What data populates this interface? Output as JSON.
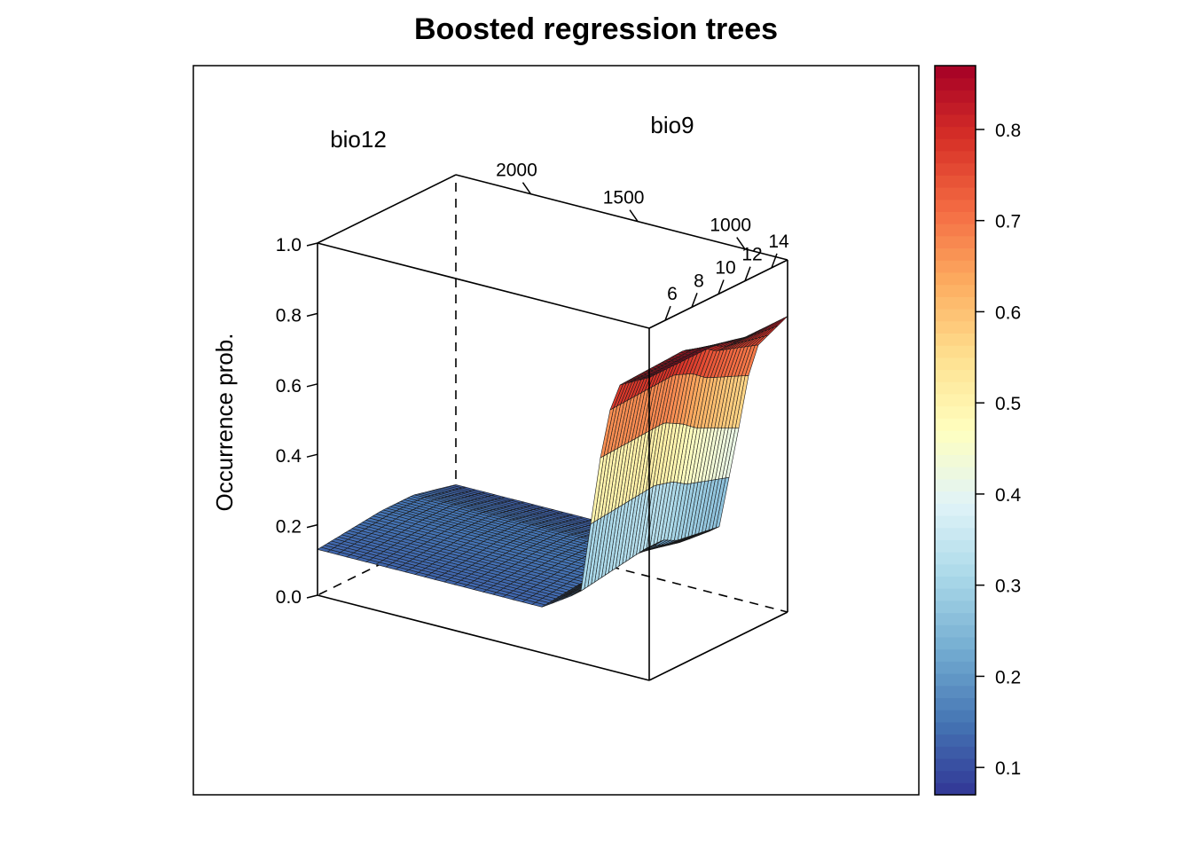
{
  "chart_data": {
    "type": "surface3d",
    "title": "Boosted regression trees",
    "xlabel": "bio12",
    "ylabel": "bio9",
    "zlabel": "Occurrence prob.",
    "x_ticks": [
      "2000",
      "1500",
      "1000"
    ],
    "y_ticks": [
      "6",
      "8",
      "10",
      "12",
      "14"
    ],
    "z_ticks": [
      "0.0",
      "0.2",
      "0.4",
      "0.6",
      "0.8",
      "1.0"
    ],
    "xlim": [
      2350,
      800
    ],
    "ylim": [
      4.8,
      15.2
    ],
    "zlim": [
      0,
      1
    ],
    "bio12_levels": [
      2350,
      1300,
      1120,
      1030,
      960,
      800
    ],
    "bio9_levels": [
      4.8,
      9.6,
      11.0,
      12.0,
      15.2
    ],
    "occurrence_prob": [
      [
        0.13,
        0.15,
        0.15,
        0.15,
        0.12
      ],
      [
        0.13,
        0.15,
        0.15,
        0.15,
        0.12
      ],
      [
        0.2,
        0.23,
        0.23,
        0.21,
        0.19
      ],
      [
        0.59,
        0.6,
        0.57,
        0.54,
        0.48
      ],
      [
        0.81,
        0.82,
        0.8,
        0.77,
        0.72
      ],
      [
        0.86,
        0.86,
        0.85,
        0.84,
        0.84
      ]
    ],
    "colorbar": {
      "range": [
        0.07,
        0.87
      ],
      "ticks": [
        "0.1",
        "0.2",
        "0.3",
        "0.4",
        "0.5",
        "0.6",
        "0.7",
        "0.8"
      ],
      "palette": "RdYlBu (reversed)"
    },
    "colors": {
      "low": "#313695",
      "mid": "#ffffbf",
      "high": "#a50026"
    }
  }
}
